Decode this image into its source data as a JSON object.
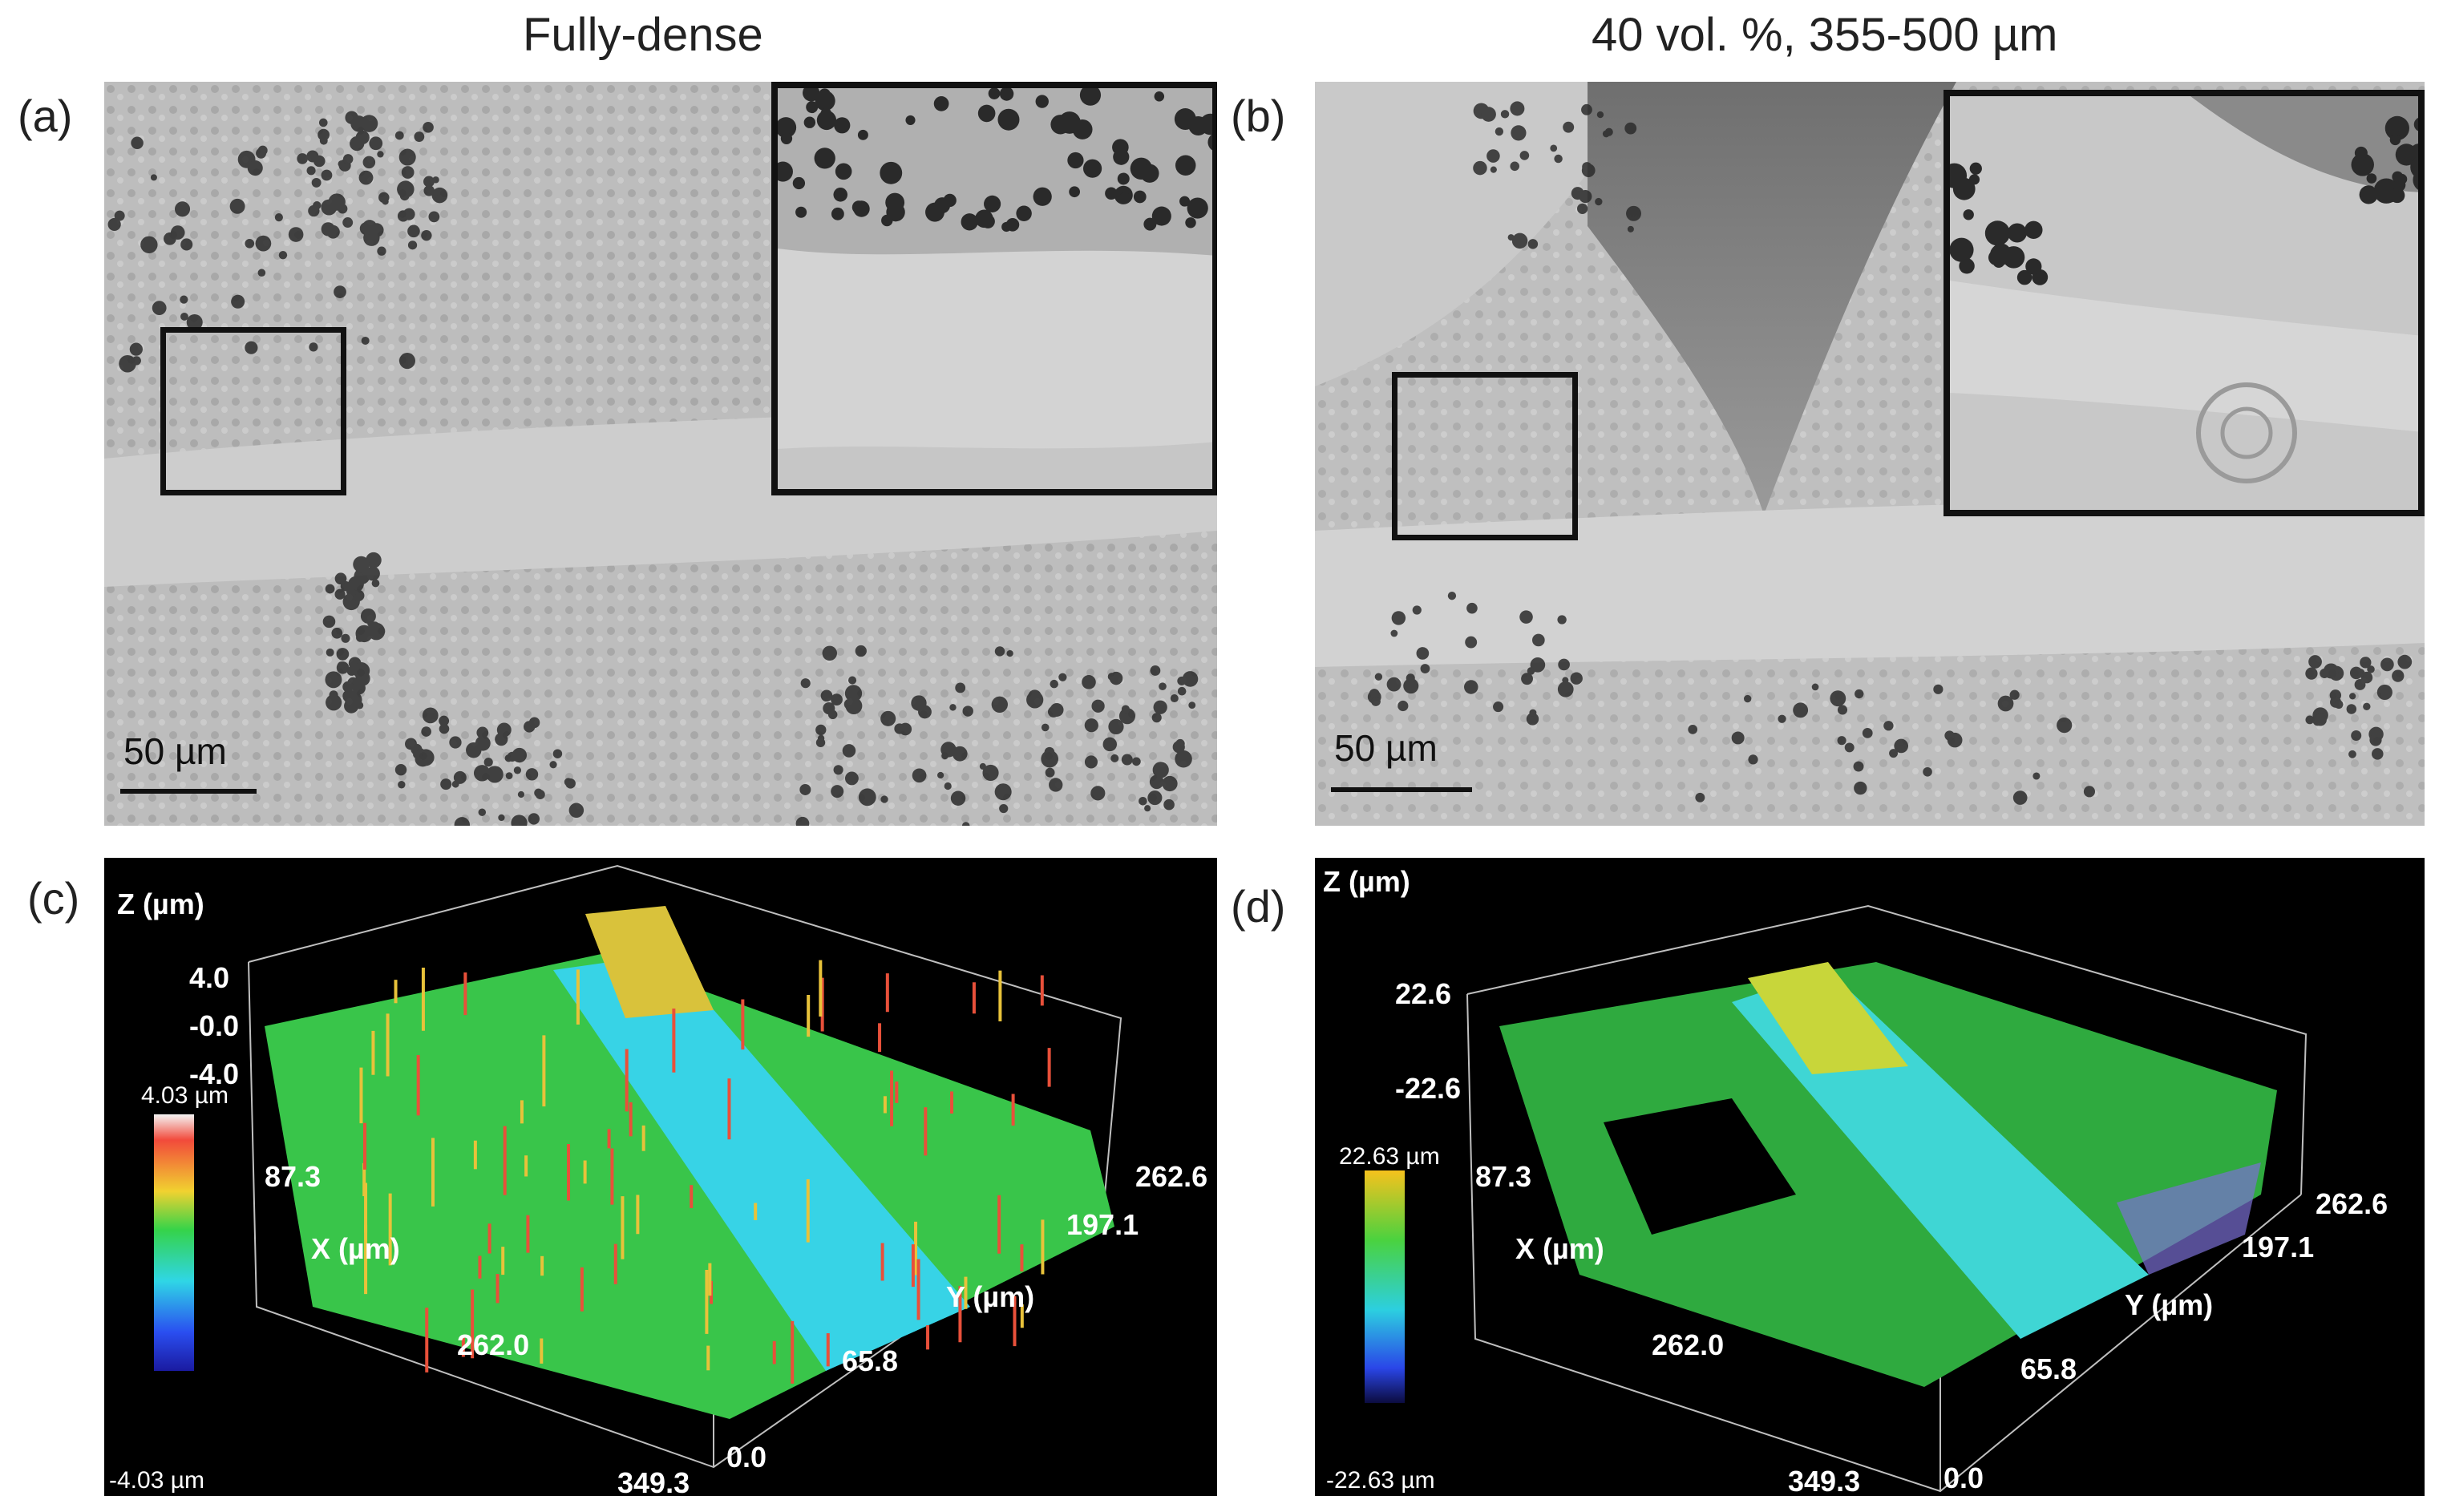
{
  "titles": {
    "left": "Fully-dense",
    "right": "40 vol. %, 355-500 µm"
  },
  "panels": {
    "a": {
      "label": "(a)",
      "scale": "50 µm"
    },
    "b": {
      "label": "(b)",
      "scale": "50 µm"
    },
    "c": {
      "label": "(c)",
      "z_axis": "Z (µm)",
      "z_ticks": [
        "4.0",
        "-0.0",
        "-4.0"
      ],
      "x_axis": "X (µm)",
      "x_ticks": [
        "87.3",
        "262.0",
        "349.3"
      ],
      "y_axis": "Y (µm)",
      "y_ticks": [
        "262.6",
        "197.1",
        "65.8",
        "0.0"
      ],
      "cbar_max": "4.03 µm",
      "cbar_min": "-4.03 µm"
    },
    "d": {
      "label": "(d)",
      "z_axis": "Z (µm)",
      "z_ticks": [
        "22.6",
        "-22.6"
      ],
      "x_axis": "X (µm)",
      "x_ticks": [
        "87.3",
        "262.0",
        "349.3"
      ],
      "y_axis": "Y (µm)",
      "y_ticks": [
        "262.6",
        "197.1",
        "65.8",
        "0.0"
      ],
      "cbar_max": "22.63 µm",
      "cbar_min": "-22.63 µm"
    }
  },
  "colors": {
    "sem_base": "#b9b9b9",
    "sem_track": "#cfcfcf",
    "pit": "#2a2a2a",
    "surface_green": "#3cc84a",
    "track_cyan": "#39d6e8",
    "peak_red": "#e8503a",
    "plot_bg": "#000000",
    "frame": "#111111"
  },
  "icons": [
    "scale-bar",
    "colorbar-rainbow",
    "colorbar-dense"
  ]
}
